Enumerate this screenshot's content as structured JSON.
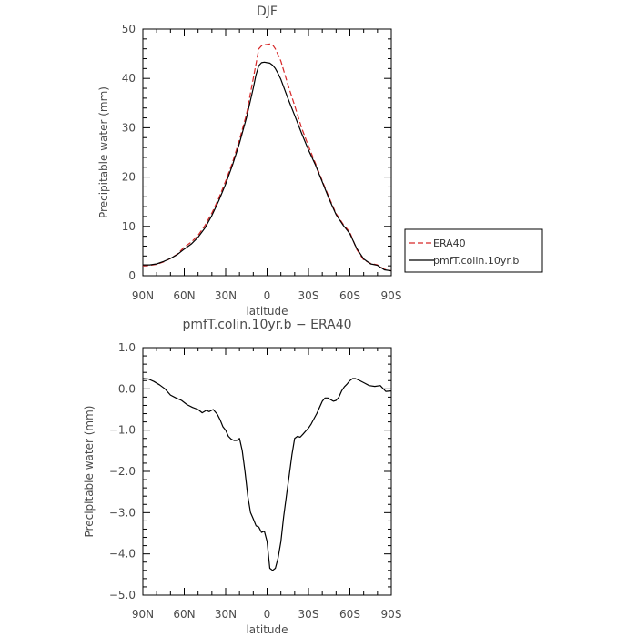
{
  "chart_data": [
    {
      "type": "line",
      "title": "DJF",
      "xlabel": "latitude",
      "ylabel": "Precipitable water (mm)",
      "xlim": [
        90,
        -90
      ],
      "ylim": [
        0,
        50
      ],
      "xticks": [
        90,
        60,
        30,
        0,
        -30,
        -60,
        -90
      ],
      "xtick_labels": [
        "90N",
        "60N",
        "30N",
        "0",
        "30S",
        "60S",
        "90S"
      ],
      "yticks": [
        0,
        10,
        20,
        30,
        40,
        50
      ],
      "ytick_labels": [
        "0",
        "10",
        "20",
        "30",
        "40",
        "50"
      ],
      "grid": false,
      "legend": "right-outside",
      "series": [
        {
          "name": "ERA40",
          "color": "#d62728",
          "dash": "dashed",
          "x": [
            90,
            85,
            80,
            75,
            70,
            65,
            60,
            55,
            50,
            45,
            40,
            35,
            30,
            25,
            20,
            15,
            10,
            8,
            6,
            4,
            2,
            0,
            -2,
            -4,
            -6,
            -8,
            -10,
            -15,
            -20,
            -25,
            -30,
            -35,
            -40,
            -45,
            -50,
            -55,
            -60,
            -65,
            -70,
            -75,
            -80,
            -85,
            -90
          ],
          "y": [
            2.0,
            2.1,
            2.3,
            2.8,
            3.5,
            4.4,
            5.8,
            6.8,
            8.2,
            10.2,
            12.7,
            15.7,
            19.2,
            23.0,
            27.6,
            32.7,
            40.0,
            43.0,
            46.0,
            46.6,
            46.8,
            46.9,
            47.0,
            46.8,
            46.0,
            44.8,
            43.5,
            38.8,
            34.5,
            30.0,
            26.3,
            22.8,
            19.2,
            15.8,
            12.6,
            10.5,
            8.8,
            5.3,
            3.2,
            2.5,
            2.2,
            1.3,
            1.0
          ]
        },
        {
          "name": "pmfT.colin.10yr.b",
          "color": "#000000",
          "dash": "solid",
          "x": [
            90,
            85,
            80,
            75,
            70,
            65,
            60,
            55,
            50,
            45,
            40,
            35,
            30,
            25,
            20,
            15,
            10,
            8,
            6,
            4,
            2,
            0,
            -2,
            -4,
            -6,
            -8,
            -10,
            -15,
            -20,
            -25,
            -30,
            -35,
            -40,
            -45,
            -50,
            -55,
            -60,
            -65,
            -70,
            -75,
            -80,
            -85,
            -90
          ],
          "y": [
            2.2,
            2.2,
            2.4,
            2.9,
            3.5,
            4.3,
            5.4,
            6.4,
            7.8,
            9.7,
            12.2,
            15.2,
            18.6,
            22.5,
            26.9,
            32.0,
            38.0,
            40.8,
            42.6,
            43.2,
            43.3,
            43.2,
            43.1,
            42.7,
            42.0,
            41.0,
            39.8,
            36.0,
            32.5,
            28.9,
            25.5,
            22.5,
            19.0,
            15.5,
            12.4,
            10.3,
            8.5,
            5.5,
            3.4,
            2.4,
            2.1,
            1.2,
            1.0
          ]
        }
      ]
    },
    {
      "type": "line",
      "title": "pmfT.colin.10yr.b − ERA40",
      "xlabel": "latitude",
      "ylabel": "Precipitable water (mm)",
      "xlim": [
        90,
        -90
      ],
      "ylim": [
        -5,
        1
      ],
      "xticks": [
        90,
        60,
        30,
        0,
        -30,
        -60,
        -90
      ],
      "xtick_labels": [
        "90N",
        "60N",
        "30N",
        "0",
        "30S",
        "60S",
        "90S"
      ],
      "yticks": [
        1,
        0,
        -1,
        -2,
        -3,
        -4,
        -5
      ],
      "ytick_labels": [
        "1.0",
        "0.0",
        "−1.0",
        "−2.0",
        "−3.0",
        "−4.0",
        "−5.0"
      ],
      "grid": false,
      "series": [
        {
          "color": "#000000",
          "dash": "solid",
          "x": [
            90,
            86,
            82,
            78,
            74,
            70,
            66,
            62,
            58,
            54,
            50,
            47,
            44,
            42,
            39,
            36,
            34,
            32,
            30,
            28,
            26,
            24,
            22,
            20,
            18,
            16,
            14,
            12,
            10,
            8,
            6,
            4,
            2,
            0,
            -2,
            -4,
            -6,
            -8,
            -10,
            -12,
            -14,
            -16,
            -18,
            -20,
            -22,
            -24,
            -26,
            -28,
            -30,
            -32,
            -34,
            -36,
            -38,
            -40,
            -42,
            -44,
            -46,
            -48,
            -50,
            -52,
            -54,
            -56,
            -58,
            -60,
            -62,
            -64,
            -66,
            -70,
            -74,
            -78,
            -82,
            -86,
            -90
          ],
          "y": [
            0.25,
            0.24,
            0.18,
            0.1,
            0.0,
            -0.15,
            -0.22,
            -0.28,
            -0.38,
            -0.45,
            -0.5,
            -0.58,
            -0.52,
            -0.55,
            -0.5,
            -0.62,
            -0.75,
            -0.92,
            -1.0,
            -1.15,
            -1.22,
            -1.25,
            -1.25,
            -1.2,
            -1.5,
            -2.0,
            -2.6,
            -3.0,
            -3.15,
            -3.32,
            -3.35,
            -3.48,
            -3.45,
            -3.7,
            -4.35,
            -4.4,
            -4.35,
            -4.1,
            -3.7,
            -3.1,
            -2.6,
            -2.1,
            -1.6,
            -1.2,
            -1.15,
            -1.17,
            -1.1,
            -1.02,
            -0.95,
            -0.85,
            -0.72,
            -0.6,
            -0.45,
            -0.3,
            -0.22,
            -0.22,
            -0.26,
            -0.3,
            -0.28,
            -0.2,
            -0.05,
            0.05,
            0.12,
            0.2,
            0.25,
            0.25,
            0.22,
            0.15,
            0.08,
            0.06,
            0.08,
            -0.06,
            -0.05
          ]
        }
      ]
    }
  ]
}
